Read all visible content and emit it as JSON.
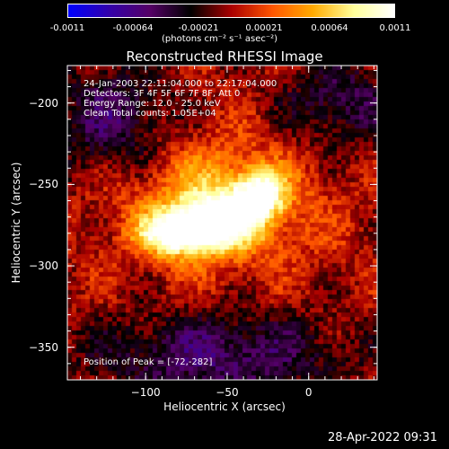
{
  "colorbar": {
    "ticks": [
      "-0.0011",
      "-0.00064",
      "-0.00021",
      "0.00021",
      "0.00064",
      "0.0011"
    ],
    "unit": "(photons cm⁻² s⁻¹ asec⁻²)",
    "colors": [
      "#0000ff",
      "#3300aa",
      "#550066",
      "#000000",
      "#aa0000",
      "#ff5500",
      "#ffaa00",
      "#ffff99",
      "#ffffff"
    ]
  },
  "info": {
    "line1": "24-Jan-2003 22:11:04.000 to 22:17:04.000",
    "line2": "Detectors: 3F 4F 5F 6F 7F 8F, Att 0",
    "line3": "Energy Range: 12.0 - 25.0 keV",
    "line4": "Clean    Total counts: 1.05E+04",
    "peak": "Position of Peak = [-72,-282]"
  },
  "timestamp": "28-Apr-2022 09:31",
  "chart_data": {
    "type": "heatmap",
    "title": "Reconstructed RHESSI Image",
    "xlabel": "Heliocentric X (arcsec)",
    "ylabel": "Heliocentric Y (arcsec)",
    "xlim": [
      -148,
      42
    ],
    "ylim": [
      -370,
      -177
    ],
    "xticks": [
      -100,
      -50,
      0
    ],
    "xtick_labels": [
      "−100",
      "−50",
      "0"
    ],
    "yticks": [
      -200,
      -250,
      -300,
      -350
    ],
    "ytick_labels": [
      "−200",
      "−250",
      "−300",
      "−350"
    ],
    "zlim": [
      -0.0011,
      0.0011
    ],
    "peak": [
      -72,
      -282
    ],
    "sources": [
      {
        "x": -80,
        "y": -280,
        "sx": 16,
        "sy": 9,
        "amp": 1.0
      },
      {
        "x": -55,
        "y": -272,
        "sx": 16,
        "sy": 11,
        "amp": 0.8
      },
      {
        "x": -30,
        "y": -256,
        "sx": 10,
        "sy": 10,
        "amp": 0.8
      },
      {
        "x": -55,
        "y": -262,
        "sx": 38,
        "sy": 25,
        "amp": 0.6
      },
      {
        "x": -120,
        "y": -210,
        "sx": 25,
        "sy": 25,
        "amp": -0.45
      },
      {
        "x": -55,
        "y": -355,
        "sx": 55,
        "sy": 18,
        "amp": -0.5
      },
      {
        "x": 20,
        "y": -200,
        "sx": 25,
        "sy": 20,
        "amp": -0.4
      }
    ]
  }
}
